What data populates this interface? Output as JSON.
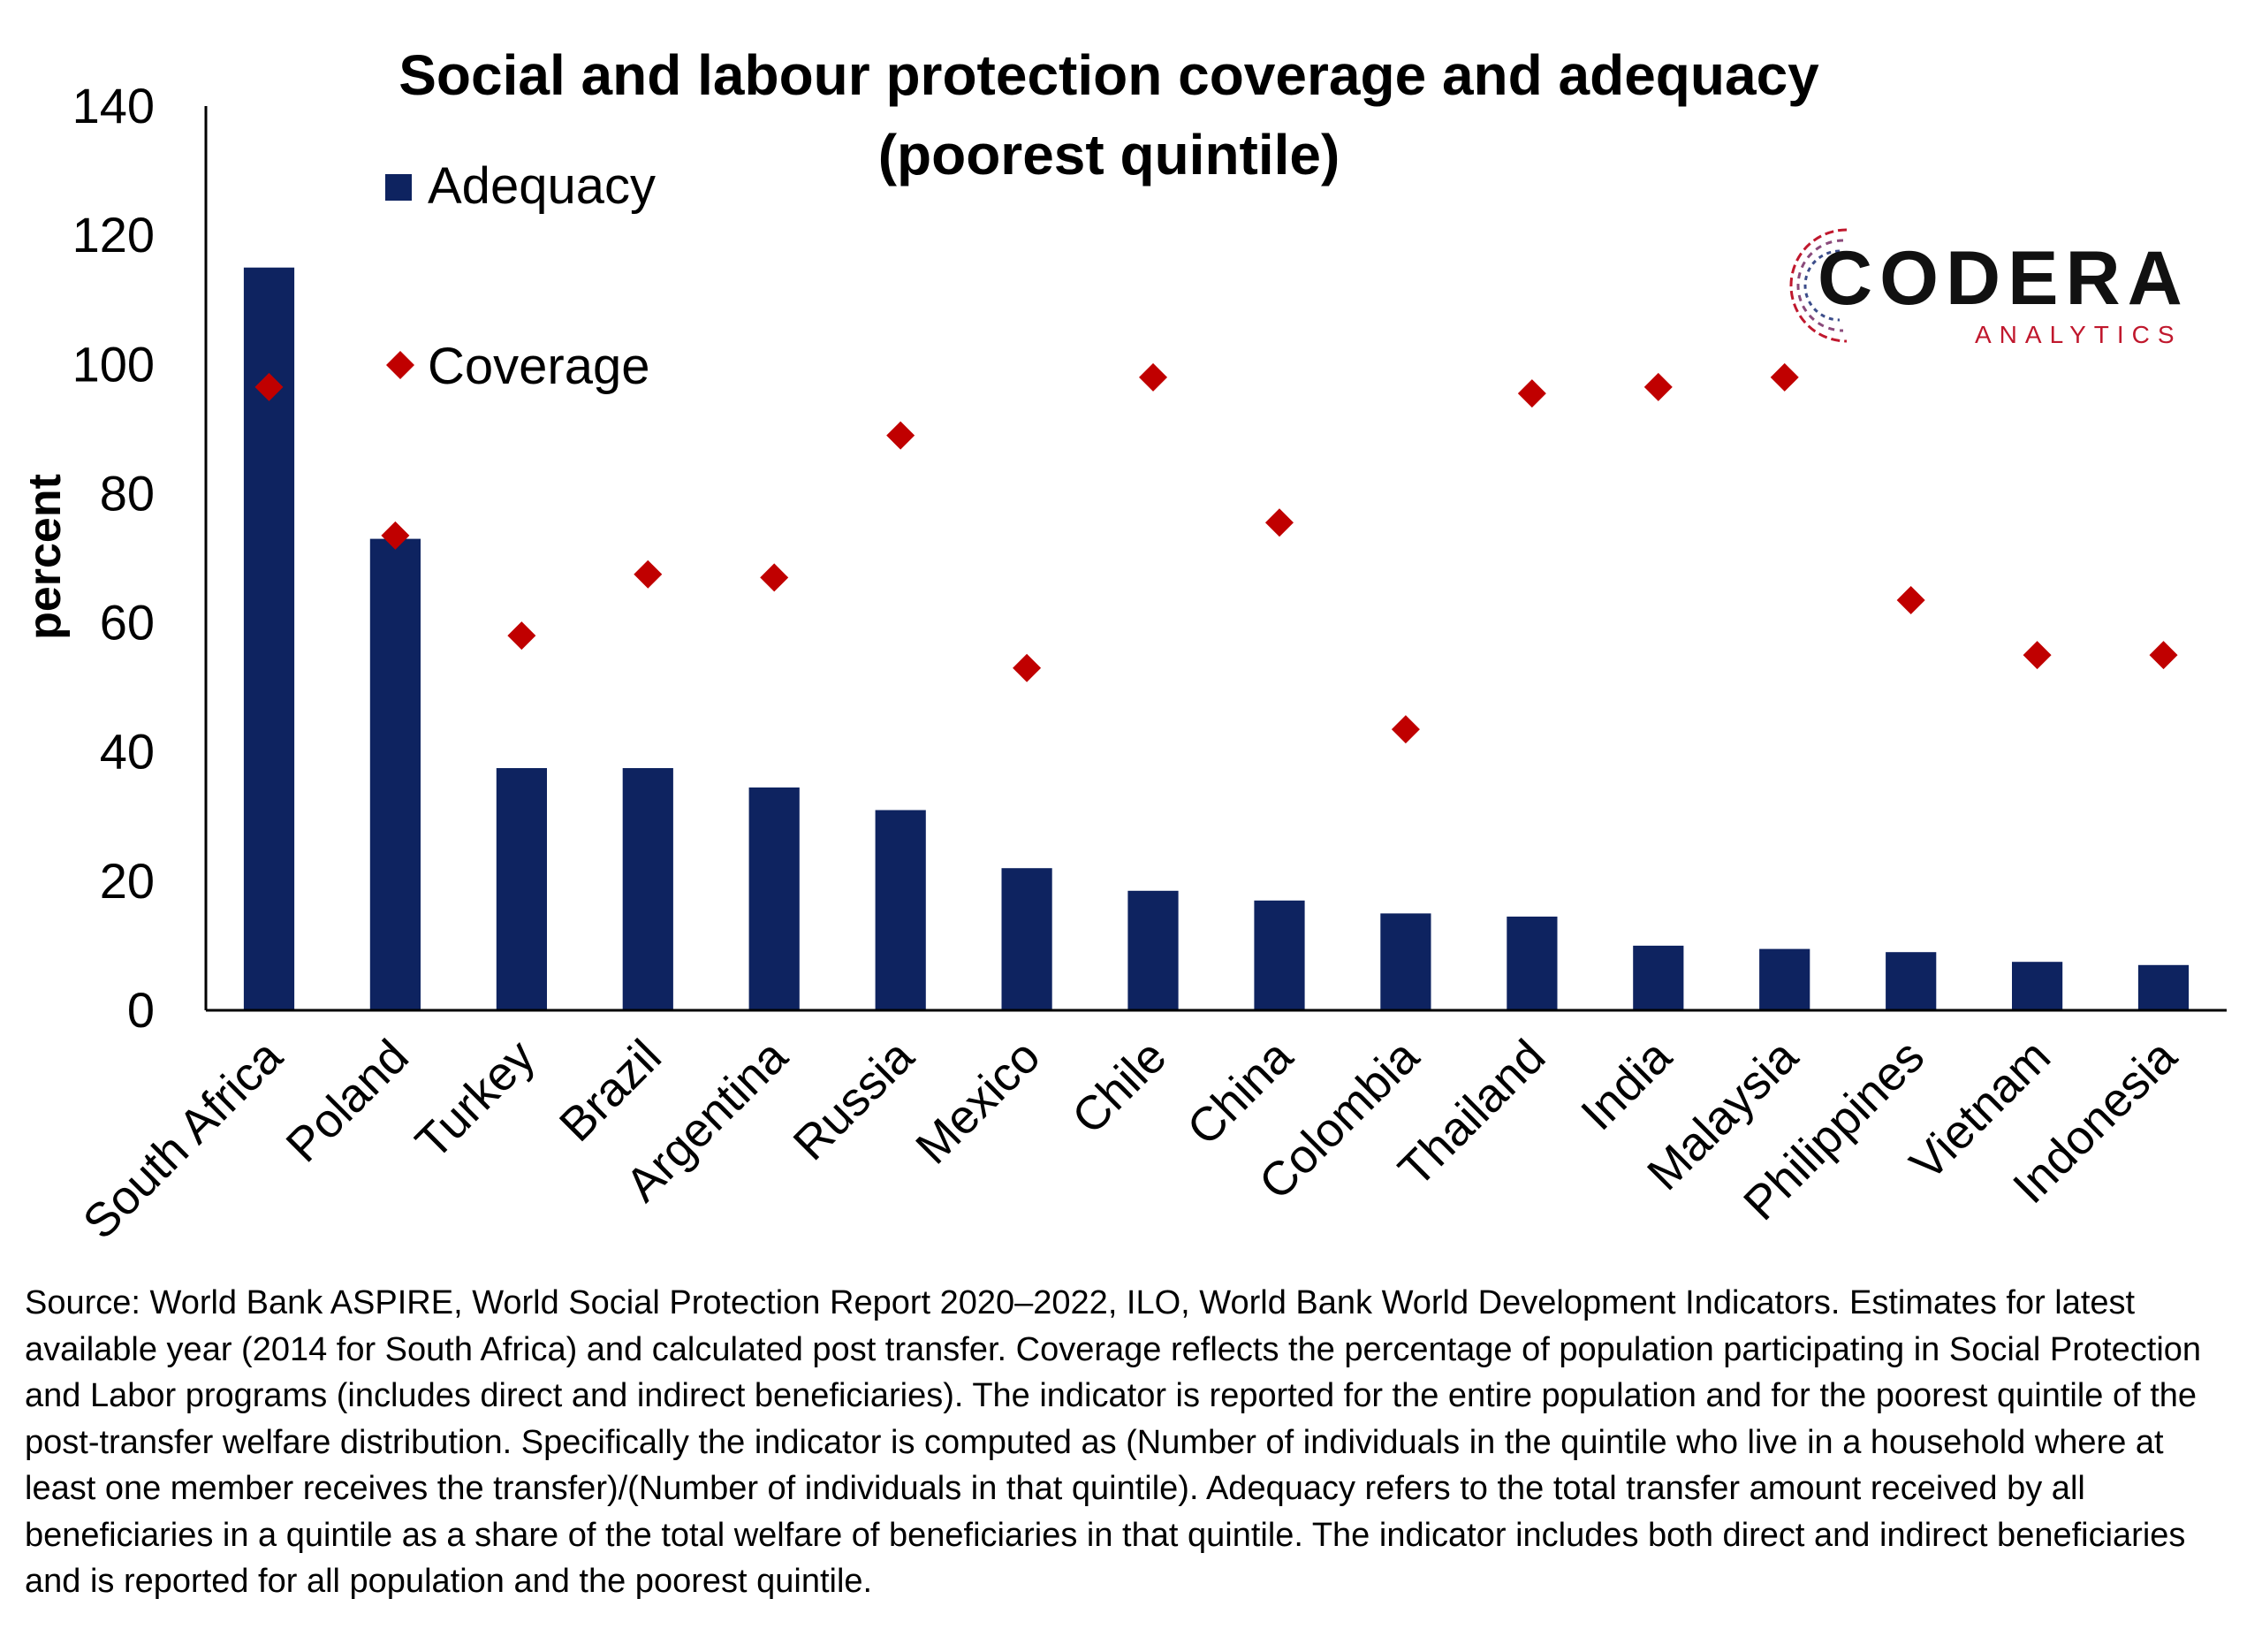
{
  "chart_data": {
    "type": "bar",
    "title": "Social and labour protection coverage and adequacy (poorest quintile)",
    "ylabel": "percent",
    "xlabel": "",
    "ylim": [
      0,
      140
    ],
    "yticks": [
      0,
      20,
      40,
      60,
      80,
      100,
      120,
      140
    ],
    "grid": false,
    "legend": "top-left",
    "categories": [
      "South Africa",
      "Poland",
      "Turkey",
      "Brazil",
      "Argentina",
      "Russia",
      "Mexico",
      "Chile",
      "China",
      "Colombia",
      "Thailand",
      "India",
      "Malaysia",
      "Philippines",
      "Vietnam",
      "Indonesia"
    ],
    "series": [
      {
        "name": "Adequacy",
        "type": "bar",
        "color": "#0e2360",
        "values": [
          115,
          73,
          37.5,
          37.5,
          34.5,
          31,
          22,
          18.5,
          17,
          15,
          14.5,
          10,
          9.5,
          9,
          7.5,
          7
        ]
      },
      {
        "name": "Coverage",
        "type": "scatter",
        "marker": "diamond",
        "color": "#c00000",
        "values": [
          96.5,
          73.5,
          58,
          67.5,
          67,
          89,
          53,
          98,
          75.5,
          43.5,
          95.5,
          96.5,
          98,
          63.5,
          55,
          55
        ]
      }
    ]
  },
  "logo": {
    "name": "CODERA",
    "tagline": "ANALYTICS",
    "accent": "#c0182d"
  },
  "source_note": "Source: World Bank ASPIRE, World Social Protection Report 2020–2022, ILO, World Bank World Development Indicators. Estimates for latest available year (2014 for South Africa) and calculated post transfer. Coverage reflects the percentage of population participating in Social Protection and Labor programs (includes direct and indirect beneficiaries). The indicator is reported for the entire population and for the poorest quintile of the post-transfer welfare distribution. Specifically the indicator is computed as (Number of individuals in the quintile who live in a household where at least one member receives the transfer)/(Number of individuals in that quintile). Adequacy refers to the total transfer amount received by all beneficiaries in a quintile as a share of the total welfare of beneficiaries in that quintile. The indicator includes both direct and indirect beneficiaries and is reported for all population and the poorest quintile."
}
